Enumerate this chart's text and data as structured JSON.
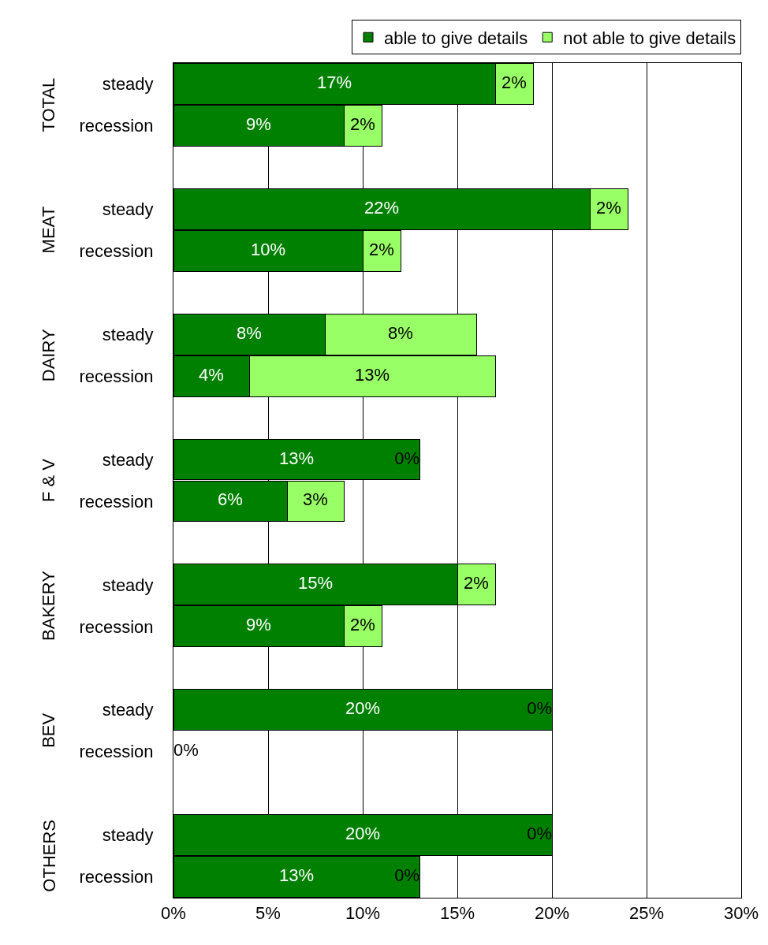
{
  "chart_data": {
    "type": "bar",
    "orientation": "horizontal",
    "stacked": true,
    "categories": [
      "steady",
      "recession",
      null,
      "steady",
      "recession",
      null,
      "steady",
      "recession",
      null,
      "steady",
      "recession",
      null,
      "steady",
      "recession",
      null,
      "steady",
      "recession",
      null,
      "steady",
      "recession"
    ],
    "annotations": [
      "TOTAL",
      "MEAT",
      "DAIRY",
      "F & V",
      "BAKERY",
      "BEV",
      "OTHERS"
    ],
    "series": [
      {
        "name": "able to give details",
        "color": "#008000",
        "values": [
          17,
          9,
          null,
          22,
          10,
          null,
          8,
          4,
          null,
          13,
          6,
          null,
          15,
          9,
          null,
          20,
          0,
          null,
          20,
          13
        ],
        "value_labels": [
          "17%",
          "9%",
          null,
          "22%",
          "10%",
          null,
          "8%",
          "4%",
          null,
          "13%",
          "6%",
          null,
          "15%",
          "9%",
          null,
          "20%",
          "0%",
          null,
          "20%",
          "13%"
        ]
      },
      {
        "name": "not able to give details",
        "color": "#99ff66",
        "values": [
          2,
          2,
          null,
          2,
          2,
          null,
          8,
          13,
          null,
          0,
          3,
          null,
          2,
          2,
          null,
          0,
          0,
          null,
          0,
          0
        ],
        "value_labels": [
          "2%",
          "2%",
          null,
          "2%",
          "2%",
          null,
          "8%",
          "13%",
          null,
          "0%",
          "3%",
          null,
          "2%",
          "2%",
          null,
          "0%",
          null,
          null,
          "0%",
          "0%"
        ]
      }
    ],
    "xlim": [
      0,
      30
    ],
    "xticks": [
      {
        "value": 0,
        "label": "0%"
      },
      {
        "value": 5,
        "label": "5%"
      },
      {
        "value": 10,
        "label": "10%"
      },
      {
        "value": 15,
        "label": "15%"
      },
      {
        "value": 20,
        "label": "20%"
      },
      {
        "value": 25,
        "label": "25%"
      },
      {
        "value": 30,
        "label": "30%"
      }
    ],
    "grid": "x",
    "legend": "top right"
  }
}
